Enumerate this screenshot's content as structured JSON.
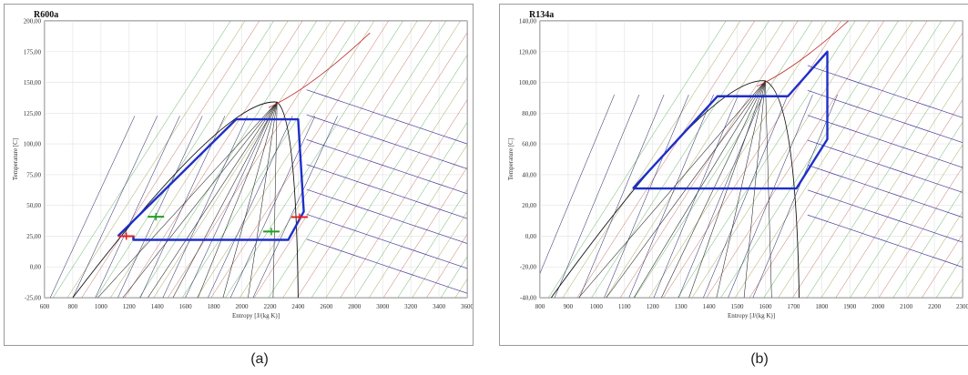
{
  "chart_data": [
    {
      "type": "line",
      "title": "R600a",
      "xlabel": "Entropy [J/(kg K)]",
      "ylabel": "Temperature [C]",
      "xticks": [
        600,
        800,
        1000,
        1200,
        1400,
        1600,
        1800,
        2000,
        2200,
        2400,
        2600,
        2800,
        3000,
        3200,
        3400,
        3600
      ],
      "yticks": [
        -25,
        0,
        25,
        50,
        75,
        100,
        125,
        150,
        175,
        200
      ],
      "ytick_labels": [
        "-25,00",
        "0,00",
        "25,00",
        "50,00",
        "75,00",
        "100,00",
        "125,00",
        "150,00",
        "175,00",
        "200,00"
      ],
      "xlim": [
        600,
        3600
      ],
      "ylim": [
        -25,
        200
      ],
      "grid": true,
      "dome": {
        "s_left": 800,
        "s_right": 2400,
        "s_crit": 2250,
        "t_base": -25,
        "t_crit": 134
      },
      "series": [
        {
          "x": [
            1120,
            1960,
            2400,
            2440,
            2330,
            1230,
            1230
          ],
          "y": [
            25,
            120,
            120,
            45,
            22,
            22,
            25
          ]
        }
      ],
      "accent": "#1f2fc8",
      "marker_colors": [
        "#e02020",
        "#20a020"
      ],
      "caption": "(a)"
    },
    {
      "type": "line",
      "title": "R134a",
      "xlabel": "Entropy [J/(kg K)]",
      "ylabel": "Temperature [C]",
      "xticks": [
        800,
        900,
        1000,
        1100,
        1200,
        1300,
        1400,
        1500,
        1600,
        1700,
        1800,
        1900,
        2000,
        2100,
        2200,
        2300
      ],
      "yticks": [
        -40,
        -20,
        0,
        20,
        40,
        60,
        80,
        100,
        120,
        140
      ],
      "ytick_labels": [
        "-40,00",
        "-20,00",
        "0,00",
        "20,00",
        "40,00",
        "60,00",
        "80,00",
        "100,00",
        "120,00",
        "140,00"
      ],
      "xlim": [
        800,
        2300
      ],
      "ylim": [
        -40,
        140
      ],
      "grid": true,
      "dome": {
        "s_left": 840,
        "s_right": 1720,
        "s_crit": 1600,
        "t_base": -40,
        "t_crit": 101
      },
      "series": [
        {
          "x": [
            1130,
            1430,
            1680,
            1820,
            1820,
            1710,
            1130
          ],
          "y": [
            31,
            91,
            91,
            120,
            63,
            31,
            31
          ]
        }
      ],
      "accent": "#1f2fc8",
      "marker_colors": [],
      "caption": "(b)"
    }
  ]
}
